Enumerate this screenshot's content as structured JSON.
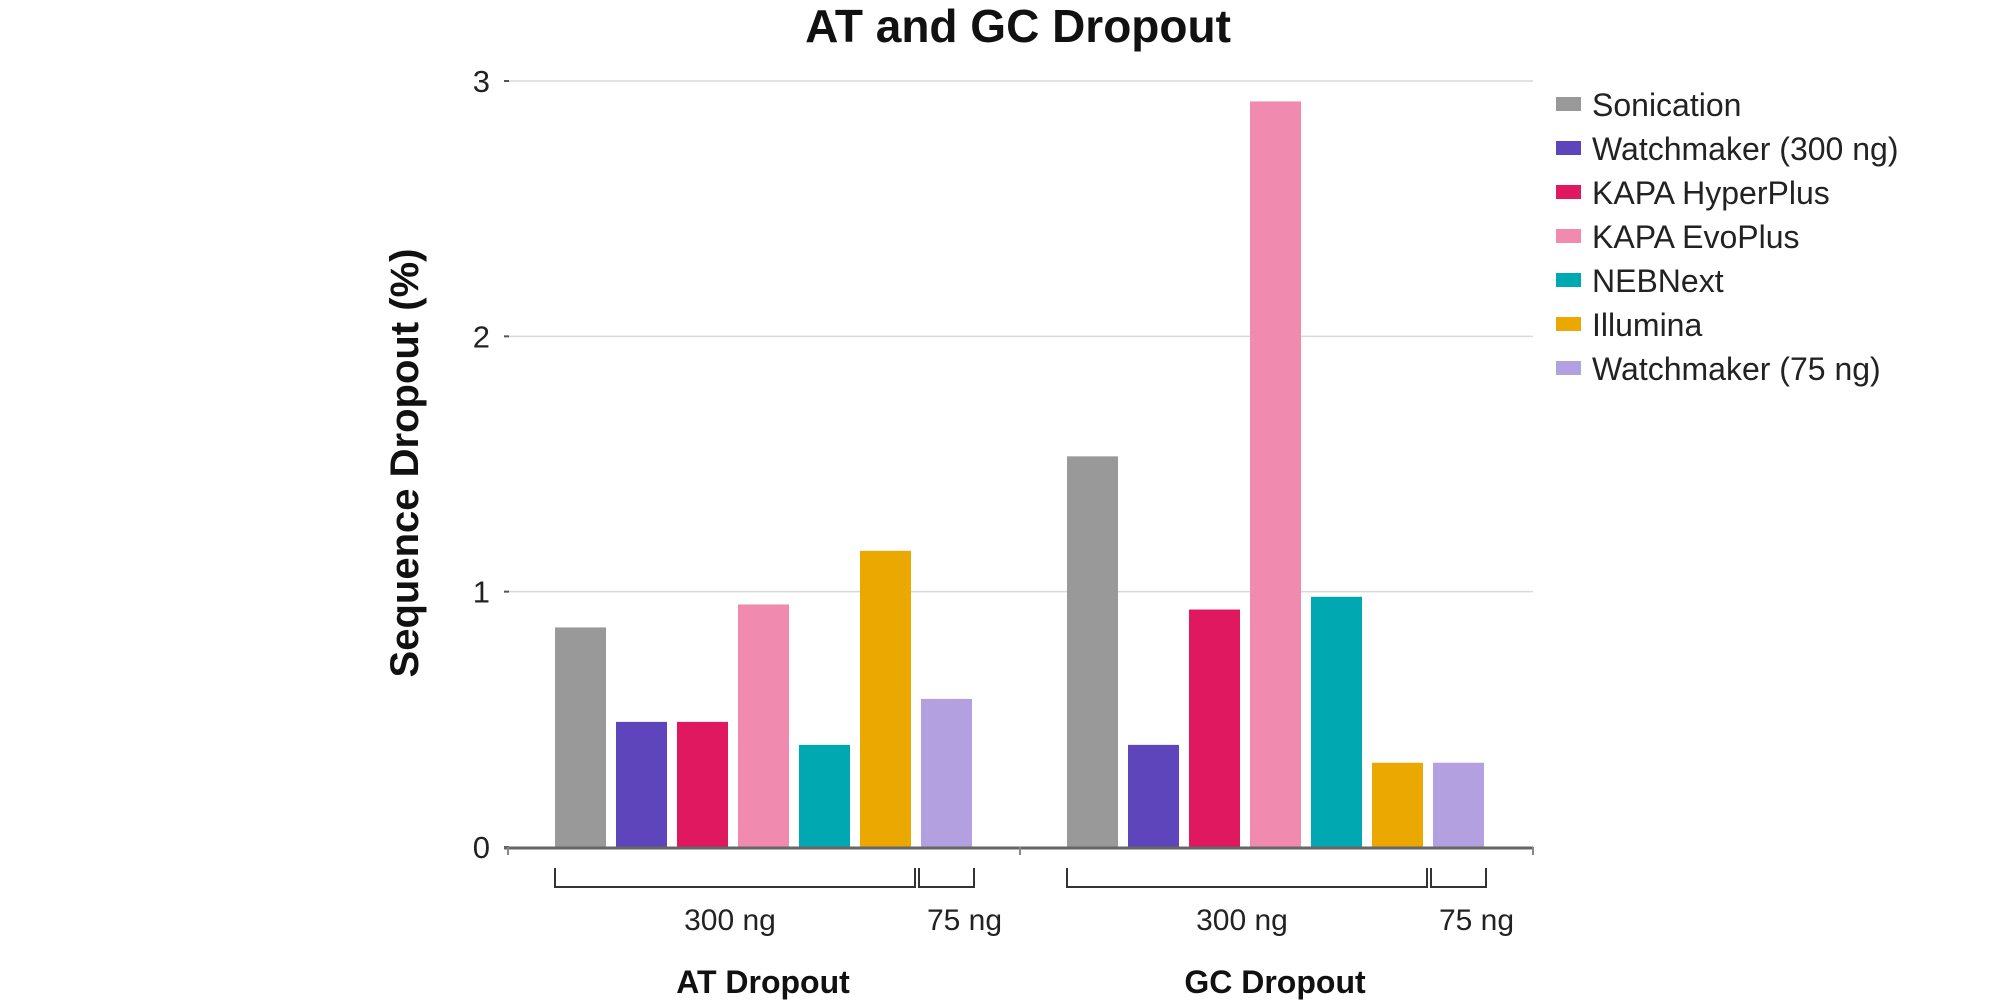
{
  "chart_data": {
    "type": "bar",
    "title": "AT and GC Dropout",
    "ylabel": "Sequence Dropout (%)",
    "xlabel": "",
    "ylim": [
      0,
      3
    ],
    "yticks": [
      "0",
      "1",
      "2",
      "3"
    ],
    "grid": true,
    "legend_position": "right",
    "categories": [
      "AT Dropout",
      "GC Dropout"
    ],
    "sublabels": [
      "300 ng",
      "75 ng"
    ],
    "series": [
      {
        "name": "Sonication",
        "color": "#999999",
        "values": [
          0.86,
          1.53
        ]
      },
      {
        "name": "Watchmaker (300 ng)",
        "color": "#5e45bb",
        "values": [
          0.49,
          0.4
        ]
      },
      {
        "name": "KAPA HyperPlus",
        "color": "#e0185f",
        "values": [
          0.49,
          0.93
        ]
      },
      {
        "name": "KAPA EvoPlus",
        "color": "#f08aae",
        "values": [
          0.95,
          2.92
        ]
      },
      {
        "name": "NEBNext",
        "color": "#00a9b2",
        "values": [
          0.4,
          0.98
        ]
      },
      {
        "name": "Illumina",
        "color": "#eba800",
        "values": [
          1.16,
          0.33
        ]
      },
      {
        "name": "Watchmaker (75 ng)",
        "color": "#b3a0e0",
        "values": [
          0.58,
          0.33
        ]
      }
    ]
  }
}
